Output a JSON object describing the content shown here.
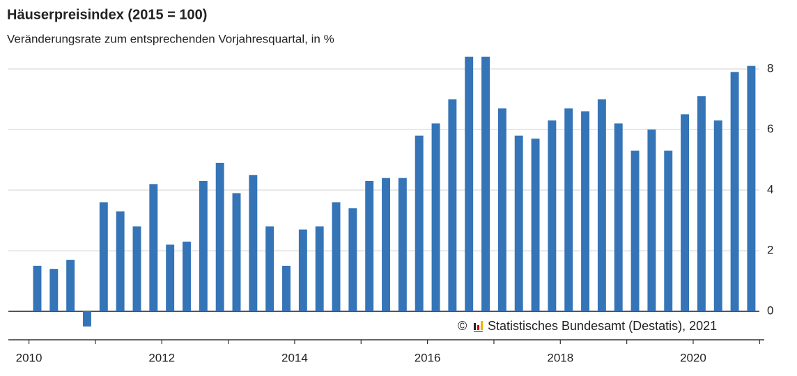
{
  "chart_data": {
    "type": "bar",
    "title": "Häuserpreisindex (2015 = 100)",
    "subtitle": "Veränderungsrate zum entsprechenden Vorjahresquartal, in %",
    "copyright": "©",
    "source": "Statistisches Bundesamt (Destatis), 2021",
    "color": "#3474b7",
    "x": [
      2010,
      2010.25,
      2010.5,
      2010.75,
      2011,
      2011.25,
      2011.5,
      2011.75,
      2012,
      2012.25,
      2012.5,
      2012.75,
      2013,
      2013.25,
      2013.5,
      2013.75,
      2014,
      2014.25,
      2014.5,
      2014.75,
      2015,
      2015.25,
      2015.5,
      2015.75,
      2016,
      2016.25,
      2016.5,
      2016.75,
      2017,
      2017.25,
      2017.5,
      2017.75,
      2018,
      2018.25,
      2018.5,
      2018.75,
      2019,
      2019.25,
      2019.5,
      2019.75,
      2020,
      2020.25,
      2020.5,
      2020.75
    ],
    "values": [
      1.5,
      1.4,
      1.7,
      -0.5,
      3.6,
      3.3,
      2.8,
      4.2,
      2.2,
      2.3,
      4.3,
      4.9,
      3.9,
      4.5,
      2.8,
      1.5,
      2.7,
      2.8,
      3.6,
      3.4,
      4.3,
      4.4,
      4.4,
      5.8,
      6.2,
      7.0,
      8.4,
      8.4,
      6.7,
      5.8,
      5.7,
      6.3,
      6.7,
      6.6,
      7.0,
      6.2,
      5.3,
      6.0,
      5.3,
      6.5,
      7.1,
      6.3,
      7.9,
      8.1
    ],
    "xlim": [
      2009.69,
      2021.07
    ],
    "xticks": [
      2010,
      2012,
      2014,
      2016,
      2018,
      2020
    ],
    "xminorticks": [
      2011,
      2013,
      2015,
      2017,
      2019,
      2021
    ],
    "ylim": [
      -0.94,
      8.5
    ],
    "yticks": [
      0,
      2,
      4,
      6,
      8
    ],
    "grid": true
  }
}
